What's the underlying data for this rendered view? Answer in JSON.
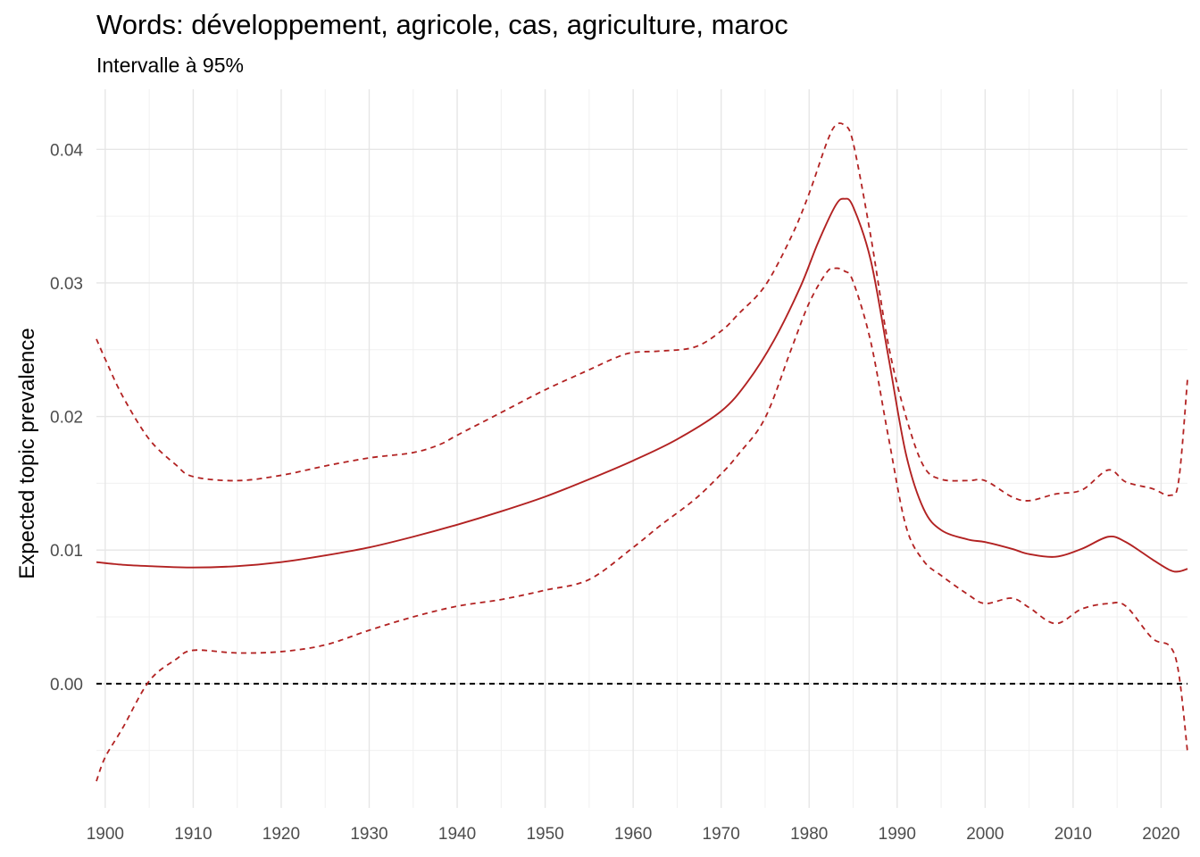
{
  "chart_data": {
    "type": "line",
    "title": "Words: développement, agricole, cas, agriculture, maroc",
    "subtitle": "Intervalle à 95%",
    "xlabel": "",
    "ylabel": "Expected topic prevalence",
    "xlim": [
      1899,
      2023
    ],
    "ylim": [
      -0.0093,
      0.0445
    ],
    "x_ticks": [
      1900,
      1910,
      1920,
      1930,
      1940,
      1950,
      1960,
      1970,
      1980,
      1990,
      2000,
      2010,
      2020
    ],
    "y_ticks": [
      0.0,
      0.01,
      0.02,
      0.03,
      0.04
    ],
    "y_tick_labels": [
      "0.00",
      "0.01",
      "0.02",
      "0.03",
      "0.04"
    ],
    "grid": true,
    "reference_line": {
      "y": 0,
      "style": "dashed",
      "color": "#000000"
    },
    "color": "#b22222",
    "series": [
      {
        "role": "estimate",
        "style": "solid",
        "x": [
          1899,
          1902,
          1905,
          1910,
          1915,
          1920,
          1925,
          1930,
          1935,
          1940,
          1945,
          1950,
          1955,
          1960,
          1965,
          1970,
          1973,
          1976,
          1979,
          1981,
          1983,
          1984,
          1985,
          1987,
          1989,
          1991,
          1993,
          1995,
          1998,
          2000,
          2003,
          2005,
          2008,
          2011,
          2014,
          2016,
          2019,
          2021,
          2022,
          2023
        ],
        "y": [
          0.0091,
          0.0089,
          0.0088,
          0.0087,
          0.0088,
          0.0091,
          0.0096,
          0.0102,
          0.011,
          0.0119,
          0.0129,
          0.014,
          0.0153,
          0.0167,
          0.0183,
          0.0204,
          0.0226,
          0.0257,
          0.0297,
          0.033,
          0.0358,
          0.0363,
          0.0357,
          0.0317,
          0.0245,
          0.0172,
          0.0131,
          0.0115,
          0.0108,
          0.0106,
          0.0101,
          0.0097,
          0.0095,
          0.0101,
          0.011,
          0.0106,
          0.0093,
          0.0085,
          0.0084,
          0.0086
        ]
      },
      {
        "role": "upper_95",
        "style": "dashed",
        "x": [
          1899,
          1900,
          1902,
          1905,
          1908,
          1910,
          1915,
          1920,
          1925,
          1930,
          1935,
          1938,
          1940,
          1945,
          1950,
          1955,
          1958,
          1960,
          1963,
          1967,
          1970,
          1972,
          1975,
          1978,
          1980,
          1982,
          1983,
          1984,
          1985,
          1987,
          1989,
          1991,
          1993,
          1995,
          1998,
          2000,
          2003,
          2005,
          2008,
          2011,
          2014,
          2016,
          2019,
          2021,
          2022,
          2023
        ],
        "y": [
          0.0258,
          0.0243,
          0.0215,
          0.0183,
          0.0164,
          0.0155,
          0.0152,
          0.0156,
          0.0163,
          0.0169,
          0.0173,
          0.0179,
          0.0186,
          0.0203,
          0.022,
          0.0235,
          0.0244,
          0.0248,
          0.0249,
          0.0252,
          0.0264,
          0.0277,
          0.0298,
          0.0335,
          0.0367,
          0.0405,
          0.0418,
          0.0418,
          0.0405,
          0.0335,
          0.0254,
          0.02,
          0.0163,
          0.0153,
          0.0152,
          0.0152,
          0.014,
          0.0137,
          0.0142,
          0.0145,
          0.016,
          0.0151,
          0.0146,
          0.0141,
          0.0152,
          0.0228
        ]
      },
      {
        "role": "lower_95",
        "style": "dashed",
        "x": [
          1899,
          1900,
          1902,
          1905,
          1908,
          1910,
          1915,
          1920,
          1925,
          1930,
          1935,
          1940,
          1945,
          1950,
          1955,
          1960,
          1963,
          1967,
          1970,
          1972,
          1975,
          1978,
          1980,
          1982,
          1983,
          1984,
          1985,
          1987,
          1989,
          1991,
          1993,
          1995,
          1998,
          2000,
          2003,
          2005,
          2008,
          2011,
          2014,
          2016,
          2019,
          2021,
          2022,
          2023
        ],
        "y": [
          -0.0073,
          -0.0055,
          -0.0033,
          0.0002,
          0.0018,
          0.0025,
          0.0023,
          0.0024,
          0.0029,
          0.004,
          0.005,
          0.0058,
          0.0063,
          0.007,
          0.0078,
          0.0102,
          0.0118,
          0.0138,
          0.0157,
          0.0172,
          0.0199,
          0.0251,
          0.0285,
          0.0308,
          0.0311,
          0.0309,
          0.0301,
          0.0256,
          0.0185,
          0.0118,
          0.0092,
          0.0081,
          0.0067,
          0.006,
          0.0064,
          0.0057,
          0.0045,
          0.0056,
          0.006,
          0.0058,
          0.0034,
          0.0028,
          0.0008,
          -0.0051
        ]
      }
    ]
  }
}
